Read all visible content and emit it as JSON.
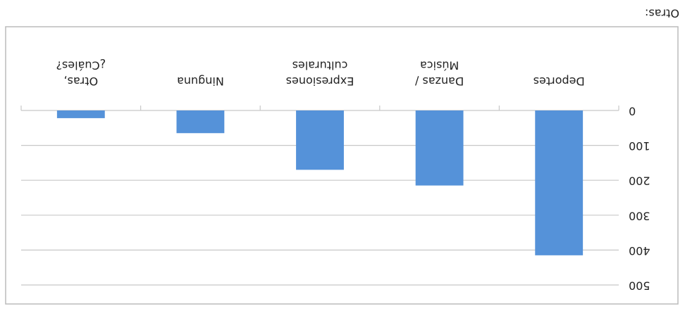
{
  "chart_data": {
    "type": "bar",
    "categories": [
      "Deportes",
      "Danzas / Música",
      "Expresiones culturales",
      "Ninguna",
      "Otras, ¿Cuáles?"
    ],
    "values": [
      415,
      215,
      170,
      65,
      22
    ],
    "color": "#5592d9",
    "ylim": [
      0,
      500
    ],
    "yticks": [
      0,
      100,
      200,
      300,
      400,
      500
    ],
    "grid": true,
    "caption": "Otras:"
  }
}
